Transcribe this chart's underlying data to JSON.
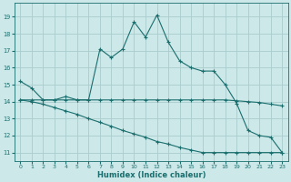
{
  "xlabel": "Humidex (Indice chaleur)",
  "background_color": "#cce8e8",
  "grid_color": "#aacccc",
  "line_color": "#1a6e6e",
  "xlim": [
    -0.5,
    23.5
  ],
  "ylim": [
    10.5,
    19.8
  ],
  "yticks": [
    11,
    12,
    13,
    14,
    15,
    16,
    17,
    18,
    19
  ],
  "xticks": [
    0,
    1,
    2,
    3,
    4,
    5,
    6,
    7,
    8,
    9,
    10,
    11,
    12,
    13,
    14,
    15,
    16,
    17,
    18,
    19,
    20,
    21,
    22,
    23
  ],
  "series1_x": [
    0,
    1,
    2,
    3,
    4,
    5,
    6,
    7,
    8,
    9,
    10,
    11,
    12,
    13,
    14,
    15,
    16,
    17,
    18,
    19,
    20,
    21,
    22,
    23
  ],
  "series1_y": [
    15.2,
    14.8,
    14.1,
    14.1,
    14.3,
    14.1,
    14.1,
    17.1,
    16.6,
    17.1,
    18.7,
    17.8,
    19.1,
    17.5,
    16.4,
    16.0,
    15.8,
    15.8,
    15.0,
    13.9,
    12.3,
    12.0,
    11.9,
    11.0
  ],
  "series2_x": [
    0,
    1,
    2,
    3,
    4,
    5,
    6,
    7,
    8,
    9,
    10,
    11,
    12,
    13,
    14,
    15,
    16,
    17,
    18,
    19,
    20,
    21,
    22,
    23
  ],
  "series2_y": [
    14.1,
    14.1,
    14.1,
    14.1,
    14.1,
    14.1,
    14.1,
    14.1,
    14.1,
    14.1,
    14.1,
    14.1,
    14.1,
    14.1,
    14.1,
    14.1,
    14.1,
    14.1,
    14.1,
    14.05,
    14.0,
    13.95,
    13.85,
    13.75
  ],
  "series3_x": [
    0,
    1,
    2,
    3,
    4,
    5,
    6,
    7,
    8,
    9,
    10,
    11,
    12,
    13,
    14,
    15,
    16,
    17,
    18,
    19,
    20,
    21,
    22,
    23
  ],
  "series3_y": [
    14.1,
    14.0,
    13.85,
    13.65,
    13.45,
    13.25,
    13.0,
    12.78,
    12.55,
    12.3,
    12.1,
    11.9,
    11.65,
    11.5,
    11.3,
    11.15,
    11.0,
    11.0,
    11.0,
    11.0,
    11.0,
    11.0,
    11.0,
    11.0
  ]
}
